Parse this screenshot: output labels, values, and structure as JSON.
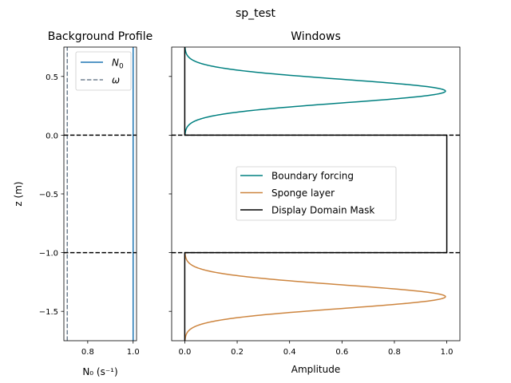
{
  "figure": {
    "suptitle": "sp_test"
  },
  "chart_data": [
    {
      "type": "line",
      "title": "Background Profile",
      "xlabel": "N₀ (s⁻¹)",
      "ylabel": "z (m)",
      "xlim": [
        0.695,
        1.015
      ],
      "ylim": [
        -1.75,
        0.75
      ],
      "xticks": [
        0.8,
        1.0
      ],
      "xtick_labels": [
        "0.8",
        "1.0"
      ],
      "yticks": [
        0.5,
        0.0,
        -0.5,
        -1.0,
        -1.5
      ],
      "ytick_labels": [
        "0.5",
        "0.0",
        "−0.5",
        "−1.0",
        "−1.5"
      ],
      "legend_position": "upper-right",
      "series": [
        {
          "name": "N₀",
          "legend_base": "N",
          "legend_sub": "0",
          "style": "solid",
          "color": "#1f77b4",
          "x": [
            1.0,
            1.0
          ],
          "y": [
            -1.75,
            0.75
          ]
        },
        {
          "name": "ω",
          "legend_base": "ω",
          "legend_sub": "",
          "style": "dashed",
          "color": "#708090",
          "x": [
            0.71,
            0.71
          ],
          "y": [
            -1.75,
            0.75
          ]
        }
      ],
      "hlines": [
        0.0,
        -1.0
      ]
    },
    {
      "type": "line",
      "title": "Windows",
      "xlabel": "Amplitude",
      "ylabel": "",
      "xlim": [
        -0.05,
        1.05
      ],
      "ylim": [
        -1.75,
        0.75
      ],
      "xticks": [
        0.0,
        0.2,
        0.4,
        0.6,
        0.8,
        1.0
      ],
      "xtick_labels": [
        "0.0",
        "0.2",
        "0.4",
        "0.6",
        "0.8",
        "1.0"
      ],
      "yticks": [
        0.5,
        0.0,
        -0.5,
        -1.0,
        -1.5
      ],
      "legend_position": "center",
      "series": [
        {
          "name": "Boundary forcing",
          "color": "#008080",
          "shape": "gaussian",
          "center": 0.375,
          "sigma": 0.1,
          "amplitude": 0.995,
          "y_range": [
            0.0,
            0.75
          ]
        },
        {
          "name": "Sponge layer",
          "color": "#cd853f",
          "shape": "gaussian",
          "center": -1.375,
          "sigma": 0.1,
          "amplitude": 0.995,
          "y_range": [
            -1.75,
            -1.0
          ]
        },
        {
          "name": "Display Domain Mask",
          "color": "#000000",
          "shape": "mask",
          "x": [
            0,
            0,
            1,
            1,
            0,
            0
          ],
          "y": [
            0.75,
            0.0,
            0.0,
            -1.0,
            -1.0,
            -1.75
          ]
        }
      ],
      "hlines": [
        0.0,
        -1.0
      ]
    }
  ]
}
